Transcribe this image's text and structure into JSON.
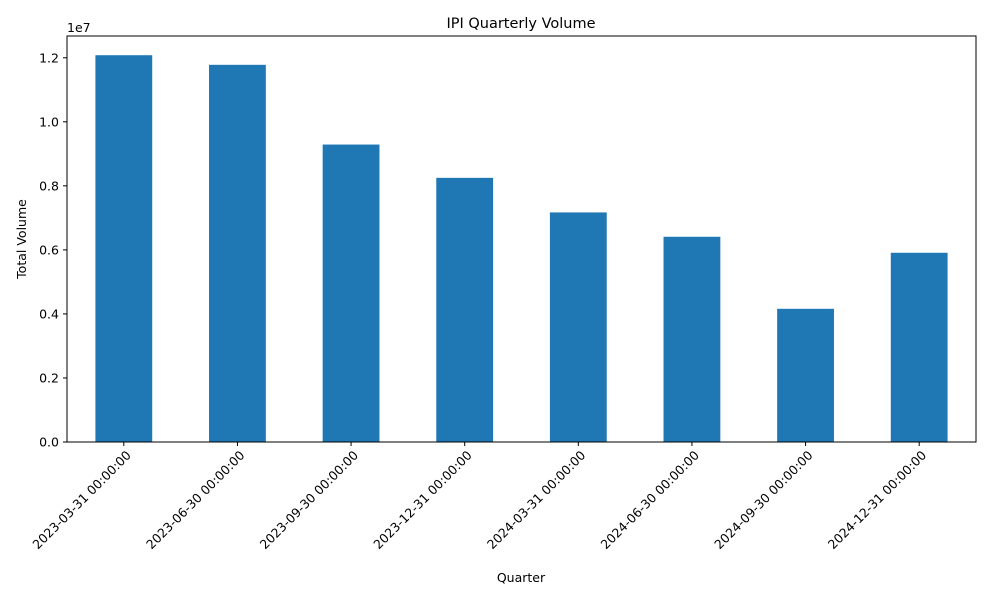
{
  "chart_data": {
    "type": "bar",
    "title": "IPI Quarterly Volume",
    "xlabel": "Quarter",
    "ylabel": "Total Volume",
    "offset_label": "1e7",
    "categories": [
      "2023-03-31 00:00:00",
      "2023-06-30 00:00:00",
      "2023-09-30 00:00:00",
      "2023-12-31 00:00:00",
      "2024-03-31 00:00:00",
      "2024-06-30 00:00:00",
      "2024-09-30 00:00:00",
      "2024-12-31 00:00:00"
    ],
    "values": [
      12080000,
      11780000,
      9290000,
      8250000,
      7170000,
      6410000,
      4160000,
      5910000
    ],
    "ylim": [
      0,
      12680000
    ],
    "yticks": [
      0,
      2000000,
      4000000,
      6000000,
      8000000,
      10000000,
      12000000
    ],
    "ytick_labels": [
      "0.0",
      "0.2",
      "0.4",
      "0.6",
      "0.8",
      "1.0",
      "1.2"
    ],
    "bar_color": "#1f77b4",
    "grid": false,
    "legend": "none"
  }
}
